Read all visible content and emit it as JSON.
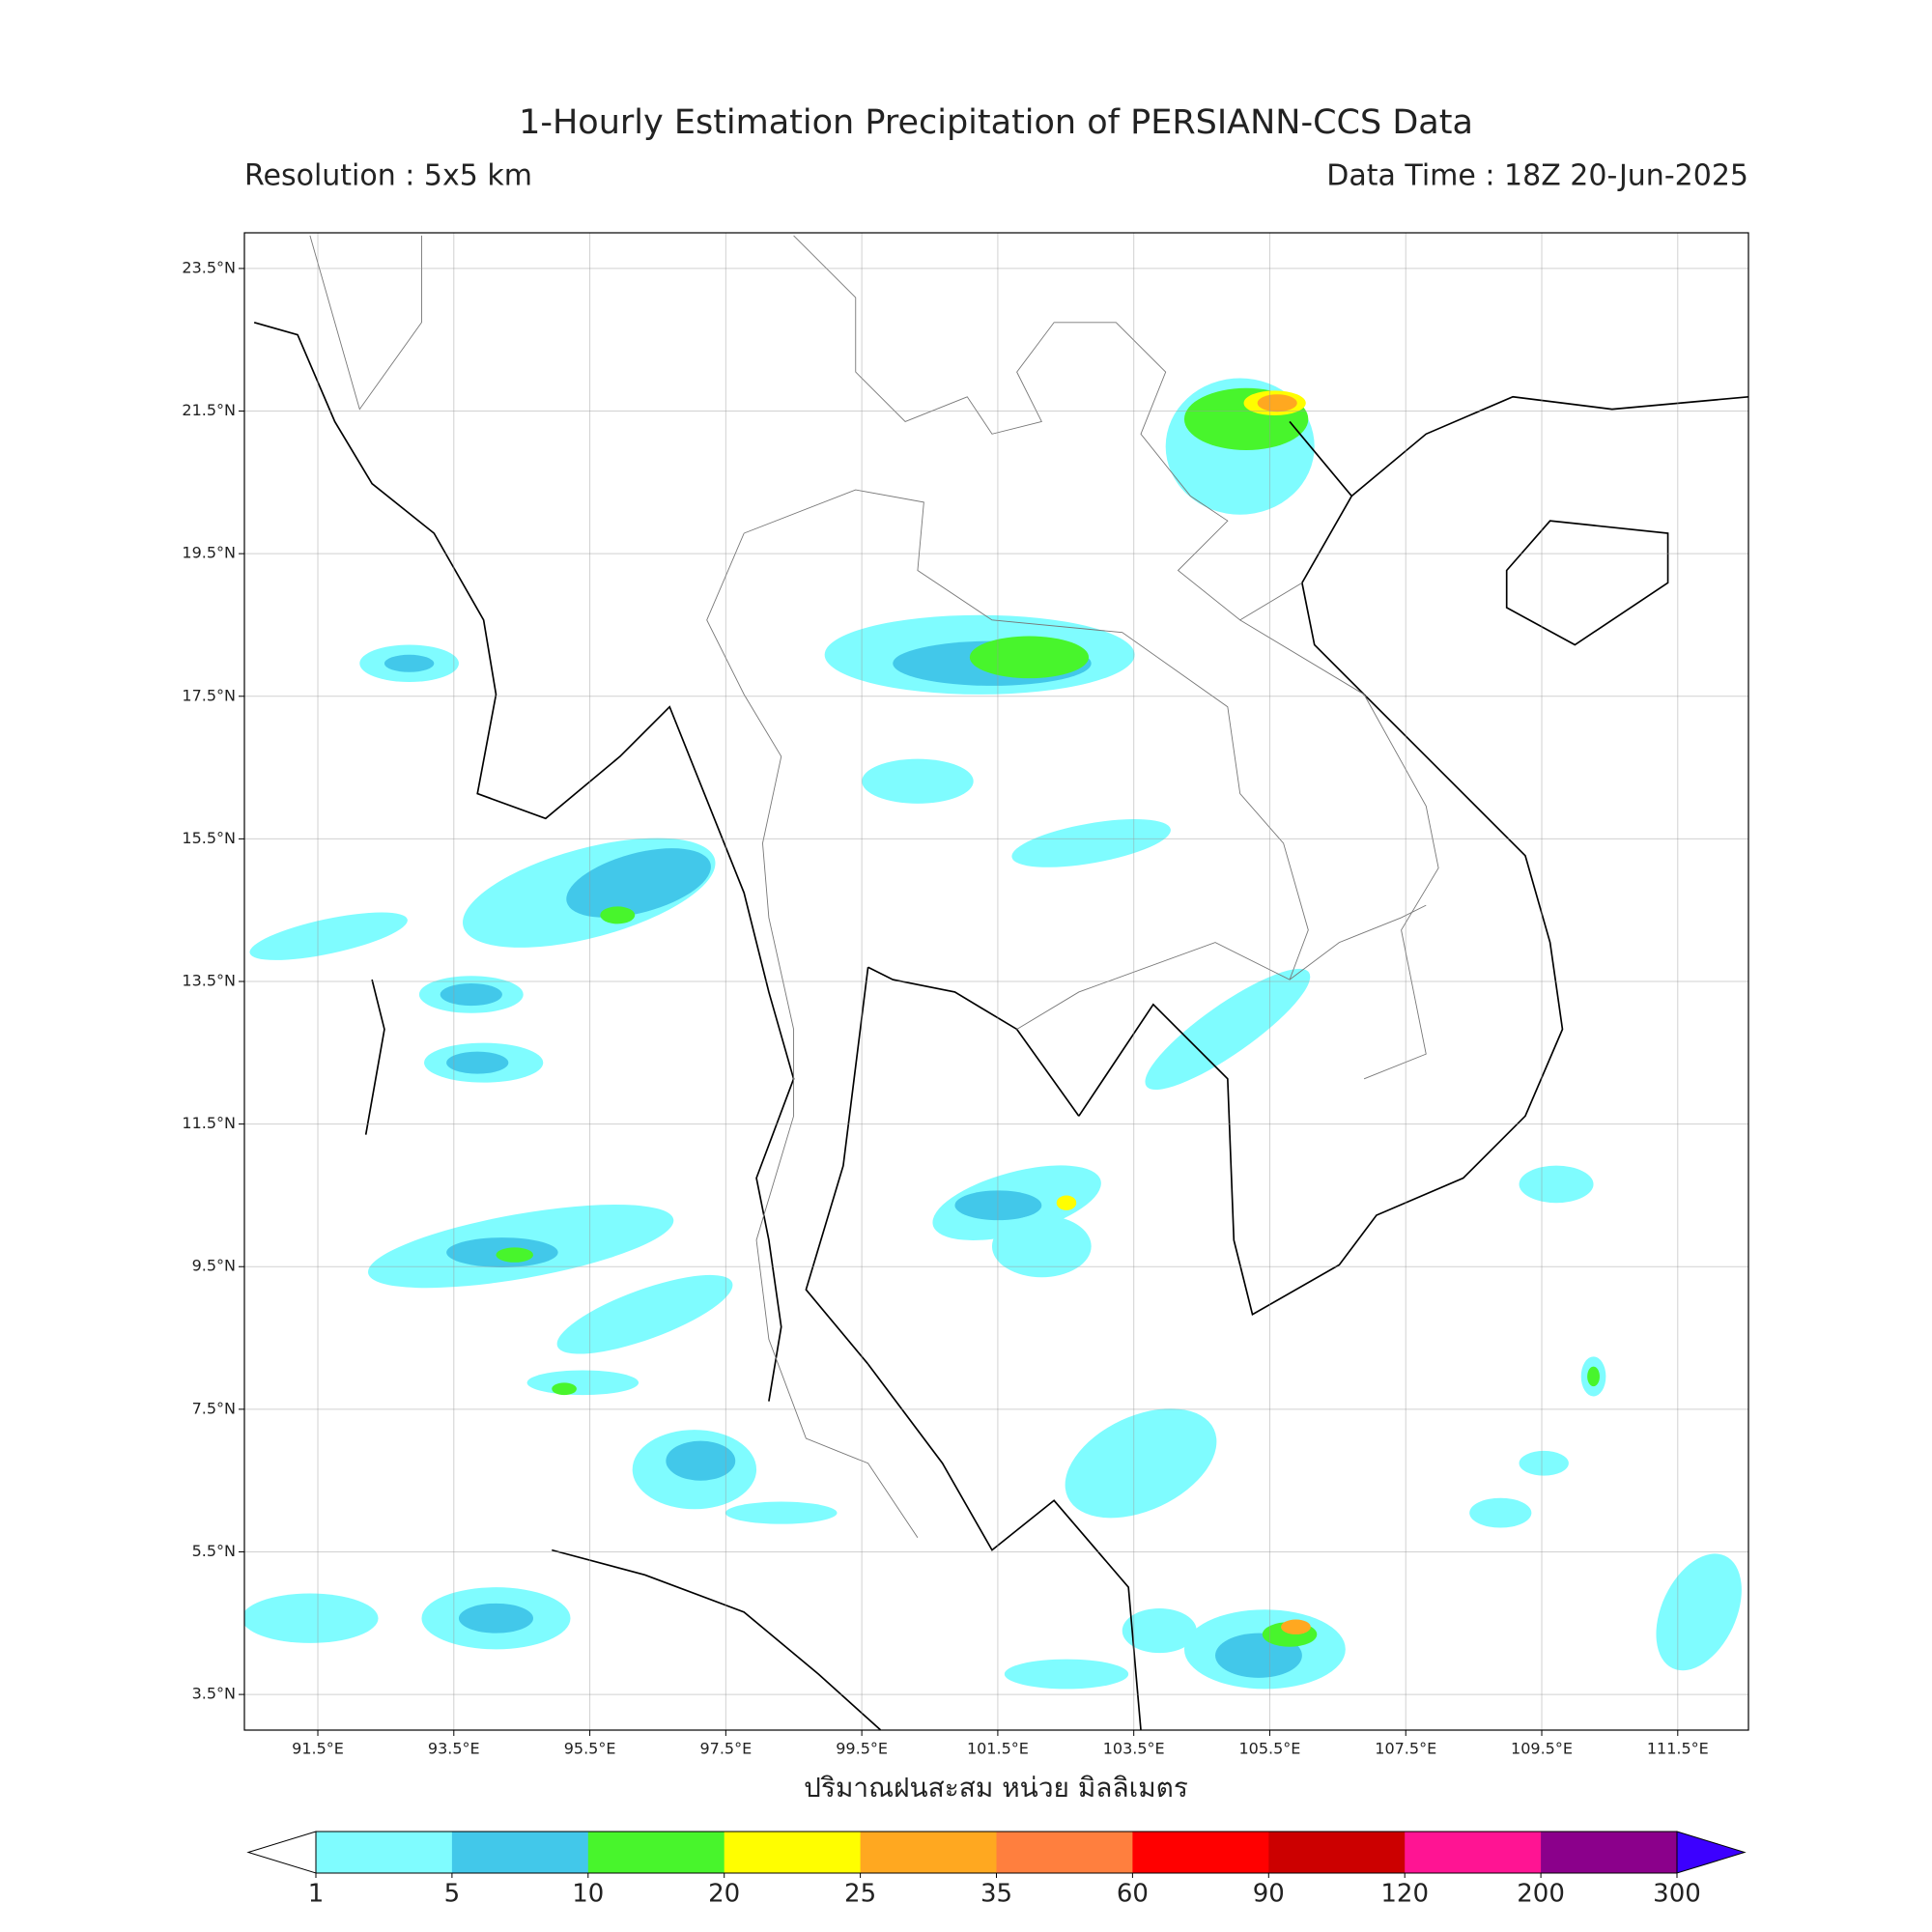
{
  "title": "1-Hourly Estimation Precipitation of PERSIANN-CCS Data",
  "resolution": "Resolution : 5x5 km",
  "data_time": "Data Time : 18Z 20-Jun-2025",
  "map": {
    "xlim": [
      90.42,
      112.54
    ],
    "ylim": [
      3.0,
      24.0
    ],
    "xticks": [
      {
        "value": 91.5,
        "label": "91.5°E"
      },
      {
        "value": 93.5,
        "label": "93.5°E"
      },
      {
        "value": 95.5,
        "label": "95.5°E"
      },
      {
        "value": 97.5,
        "label": "97.5°E"
      },
      {
        "value": 99.5,
        "label": "99.5°E"
      },
      {
        "value": 101.5,
        "label": "101.5°E"
      },
      {
        "value": 103.5,
        "label": "103.5°E"
      },
      {
        "value": 105.5,
        "label": "105.5°E"
      },
      {
        "value": 107.5,
        "label": "107.5°E"
      },
      {
        "value": 109.5,
        "label": "109.5°E"
      },
      {
        "value": 111.5,
        "label": "111.5°E"
      }
    ],
    "yticks": [
      {
        "value": 3.5,
        "label": "3.5°N"
      },
      {
        "value": 5.5,
        "label": "5.5°N"
      },
      {
        "value": 7.5,
        "label": "7.5°N"
      },
      {
        "value": 9.5,
        "label": "9.5°N"
      },
      {
        "value": 11.5,
        "label": "11.5°N"
      },
      {
        "value": 13.5,
        "label": "13.5°N"
      },
      {
        "value": 15.5,
        "label": "15.5°N"
      },
      {
        "value": 17.5,
        "label": "17.5°N"
      },
      {
        "value": 19.5,
        "label": "19.5°N"
      },
      {
        "value": 21.5,
        "label": "21.5°N"
      },
      {
        "value": 23.5,
        "label": "23.5°N"
      }
    ],
    "grid": true
  },
  "xlabel": "ปริมาณฝนสะสม หน่วย มิลลิเมตร",
  "colorbar": {
    "levels": [
      1,
      5,
      10,
      20,
      25,
      35,
      60,
      90,
      120,
      200,
      300
    ],
    "colors": [
      "#7ffcff",
      "#42c8ea",
      "#48f52c",
      "#fffe00",
      "#ffa820",
      "#ff7f3e",
      "#ff0000",
      "#cc0000",
      "#ff1493",
      "#8b008b"
    ],
    "under_color": "#ffffff",
    "over_color": "#3c00ff"
  }
}
